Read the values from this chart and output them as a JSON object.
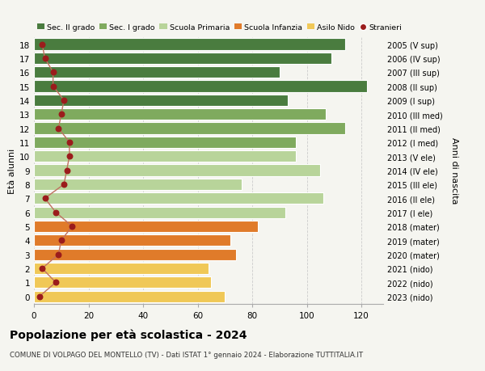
{
  "ages": [
    18,
    17,
    16,
    15,
    14,
    13,
    12,
    11,
    10,
    9,
    8,
    7,
    6,
    5,
    4,
    3,
    2,
    1,
    0
  ],
  "bar_values": [
    114,
    109,
    90,
    122,
    93,
    107,
    114,
    96,
    96,
    105,
    76,
    106,
    92,
    82,
    72,
    74,
    64,
    65,
    70
  ],
  "bar_colors": [
    "#4a7c3f",
    "#4a7c3f",
    "#4a7c3f",
    "#4a7c3f",
    "#4a7c3f",
    "#7faa5e",
    "#7faa5e",
    "#7faa5e",
    "#b8d49a",
    "#b8d49a",
    "#b8d49a",
    "#b8d49a",
    "#b8d49a",
    "#e07b2a",
    "#e07b2a",
    "#e07b2a",
    "#f0c857",
    "#f0c857",
    "#f0c857"
  ],
  "stranieri_values": [
    3,
    4,
    7,
    7,
    11,
    10,
    9,
    13,
    13,
    12,
    11,
    4,
    8,
    14,
    10,
    9,
    3,
    8,
    2
  ],
  "right_labels": [
    "2005 (V sup)",
    "2006 (IV sup)",
    "2007 (III sup)",
    "2008 (II sup)",
    "2009 (I sup)",
    "2010 (III med)",
    "2011 (II med)",
    "2012 (I med)",
    "2013 (V ele)",
    "2014 (IV ele)",
    "2015 (III ele)",
    "2016 (II ele)",
    "2017 (I ele)",
    "2018 (mater)",
    "2019 (mater)",
    "2020 (mater)",
    "2021 (nido)",
    "2022 (nido)",
    "2023 (nido)"
  ],
  "legend_labels": [
    "Sec. II grado",
    "Sec. I grado",
    "Scuola Primaria",
    "Scuola Infanzia",
    "Asilo Nido",
    "Stranieri"
  ],
  "legend_colors": [
    "#4a7c3f",
    "#7faa5e",
    "#b8d49a",
    "#e07b2a",
    "#f0c857",
    "#b22222"
  ],
  "ylabel": "Età alunni",
  "right_ylabel": "Anni di nascita",
  "title": "Popolazione per età scolastica - 2024",
  "subtitle": "COMUNE DI VOLPAGO DEL MONTELLO (TV) - Dati ISTAT 1° gennaio 2024 - Elaborazione TUTTITALIA.IT",
  "xlim": [
    0,
    128
  ],
  "xticks": [
    0,
    20,
    40,
    60,
    80,
    100,
    120
  ],
  "bg_color": "#f5f5f0",
  "bar_height": 0.82,
  "stranieri_color": "#9b1c1c",
  "stranieri_line_color": "#c07060"
}
